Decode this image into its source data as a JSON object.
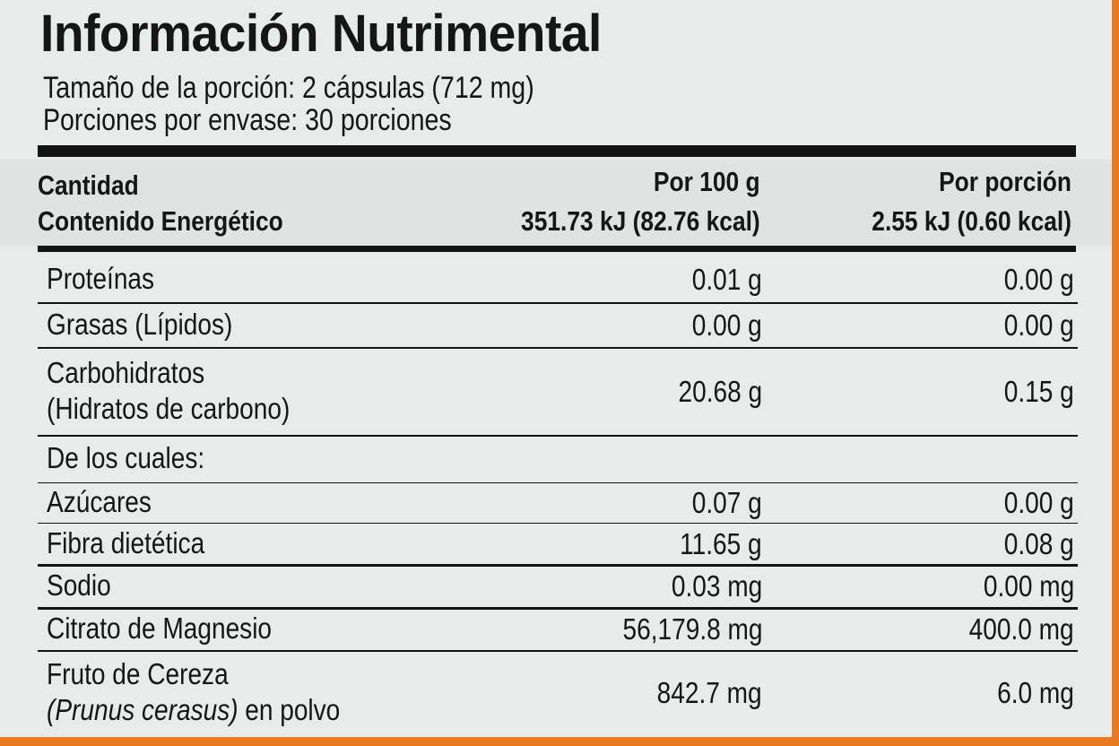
{
  "header": {
    "title": "Información Nutrimental",
    "serving_size": "Tamaño de la porción: 2 cápsulas (712 mg)",
    "servings_per_container": "Porciones por envase: 30 porciones"
  },
  "table": {
    "columns": [
      "Cantidad",
      "Por 100 g",
      "Por porción"
    ],
    "energy": [
      "Contenido Energético",
      "351.73 kJ (82.76 kcal)",
      "2.55 kJ (0.60 kcal)"
    ],
    "rows": [
      {
        "label": [
          "Proteínas"
        ],
        "per_100g": "0.01 g",
        "per_serving": "0.00 g"
      },
      {
        "label": [
          "Grasas (Lípidos)"
        ],
        "per_100g": "0.00 g",
        "per_serving": "0.00 g"
      },
      {
        "label": [
          "Carbohidratos",
          "(Hidratos de carbono)"
        ],
        "per_100g": "20.68 g",
        "per_serving": "0.15 g"
      },
      {
        "label": [
          "De los cuales:"
        ]
      },
      {
        "label": [
          "Azúcares"
        ],
        "per_100g": "0.07 g",
        "per_serving": "0.00 g"
      },
      {
        "label": [
          "Fibra dietética"
        ],
        "per_100g": "11.65 g",
        "per_serving": "0.08 g"
      },
      {
        "label": [
          "Sodio"
        ],
        "per_100g": "0.03 mg",
        "per_serving": "0.00 mg"
      },
      {
        "label": [
          "Citrato de Magnesio"
        ],
        "per_100g": "56,179.8 mg",
        "per_serving": "400.0 mg"
      },
      {
        "label": [
          "Fruto de Cereza",
          {
            "italic": "(Prunus cerasus)",
            "text": "en polvo"
          }
        ],
        "per_100g": "842.7 mg",
        "per_serving": "6.0 mg"
      }
    ]
  }
}
